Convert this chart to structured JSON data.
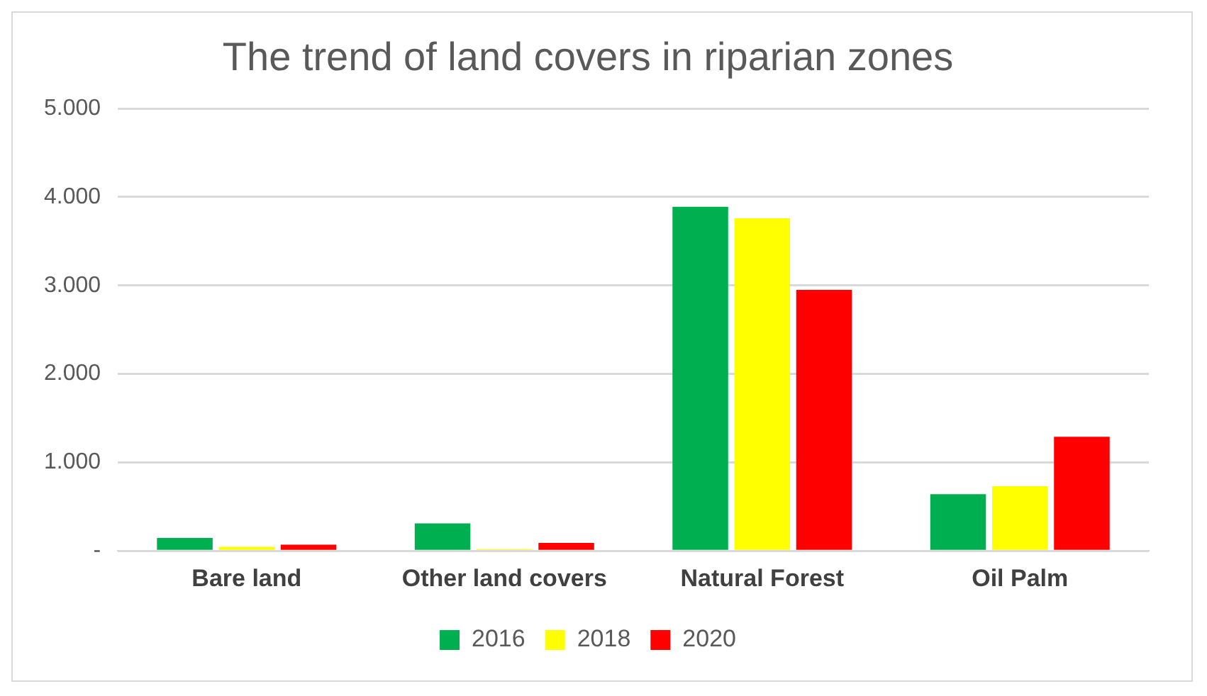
{
  "chart_data": {
    "type": "bar",
    "title": "The trend of land covers in riparian zones",
    "categories": [
      "Bare land",
      "Other land covers",
      "Natural Forest",
      "Oil Palm"
    ],
    "series": [
      {
        "name": "2016",
        "color": "#00b050",
        "values": [
          145,
          310,
          3890,
          640
        ]
      },
      {
        "name": "2018",
        "color": "#ffff00",
        "values": [
          45,
          20,
          3760,
          730
        ]
      },
      {
        "name": "2020",
        "color": "#ff0000",
        "values": [
          70,
          90,
          2950,
          1290
        ]
      }
    ],
    "ylim": [
      0,
      5000
    ],
    "yticks": [
      {
        "value": 0,
        "label": "-"
      },
      {
        "value": 1000,
        "label": "1.000"
      },
      {
        "value": 2000,
        "label": "2.000"
      },
      {
        "value": 3000,
        "label": "3.000"
      },
      {
        "value": 4000,
        "label": "4.000"
      },
      {
        "value": 5000,
        "label": "5.000"
      }
    ],
    "grid": "y",
    "legend": "bottom"
  }
}
